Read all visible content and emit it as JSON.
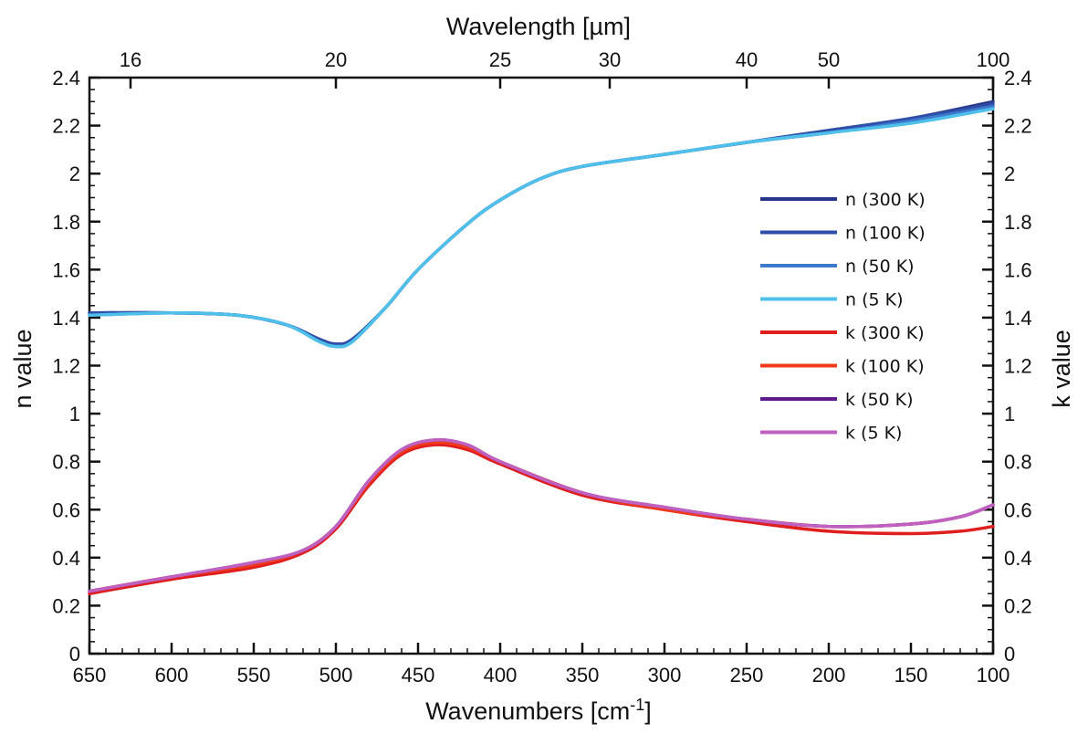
{
  "chart_data": {
    "type": "line",
    "xlabel": "Wavenumbers [cm",
    "xlabel_sup": "-1",
    "xlabel_close": "]",
    "x2label": "Wavelength [µm]",
    "ylabel": "n value",
    "y2label": "k value",
    "xlim": [
      650,
      100
    ],
    "ylim": [
      0,
      2.4
    ],
    "xticks": [
      650,
      600,
      550,
      500,
      450,
      400,
      350,
      300,
      250,
      200,
      150,
      100
    ],
    "xtick_labels": [
      "650",
      "600",
      "550",
      "500",
      "450",
      "400",
      "350",
      "300",
      "250",
      "200",
      "150",
      "100"
    ],
    "yticks": [
      0,
      0.2,
      0.4,
      0.6,
      0.8,
      1,
      1.2,
      1.4,
      1.6,
      1.8,
      2,
      2.2,
      2.4
    ],
    "ytick_labels": [
      "0",
      "0.2",
      "0.4",
      "0.6",
      "0.8",
      "1",
      "1.2",
      "1.4",
      "1.6",
      "1.8",
      "2",
      "2.2",
      "2.4"
    ],
    "top_ticks": [
      {
        "label": "16",
        "wavelength": 16
      },
      {
        "label": "20",
        "wavelength": 20
      },
      {
        "label": "25",
        "wavelength": 25
      },
      {
        "label": "30",
        "wavelength": 30
      },
      {
        "label": "40",
        "wavelength": 40
      },
      {
        "label": "50",
        "wavelength": 50
      },
      {
        "label": "100",
        "wavelength": 100
      }
    ],
    "grid": false,
    "legend_position": "right",
    "series": [
      {
        "name": "n (300 K)",
        "color": "#28368c",
        "x": [
          650,
          600,
          560,
          530,
          510,
          500,
          490,
          470,
          450,
          420,
          400,
          375,
          350,
          300,
          250,
          200,
          150,
          100
        ],
        "y": [
          1.42,
          1.42,
          1.41,
          1.37,
          1.31,
          1.29,
          1.31,
          1.44,
          1.6,
          1.79,
          1.89,
          1.98,
          2.03,
          2.08,
          2.13,
          2.18,
          2.23,
          2.3
        ]
      },
      {
        "name": "n (100 K)",
        "color": "#2e4ea8",
        "x": [
          650,
          600,
          560,
          530,
          510,
          500,
          490,
          470,
          450,
          420,
          400,
          375,
          350,
          300,
          250,
          200,
          150,
          100
        ],
        "y": [
          1.42,
          1.42,
          1.41,
          1.37,
          1.31,
          1.29,
          1.31,
          1.44,
          1.6,
          1.79,
          1.89,
          1.98,
          2.03,
          2.08,
          2.13,
          2.18,
          2.23,
          2.29
        ]
      },
      {
        "name": "n (50 K)",
        "color": "#3c78cc",
        "x": [
          650,
          600,
          560,
          530,
          510,
          500,
          490,
          470,
          450,
          420,
          400,
          375,
          350,
          300,
          250,
          200,
          150,
          100
        ],
        "y": [
          1.41,
          1.42,
          1.41,
          1.37,
          1.3,
          1.28,
          1.3,
          1.44,
          1.6,
          1.79,
          1.89,
          1.98,
          2.03,
          2.08,
          2.13,
          2.17,
          2.22,
          2.28
        ]
      },
      {
        "name": "n (5 K)",
        "color": "#4fc0ea",
        "x": [
          650,
          600,
          560,
          530,
          510,
          500,
          490,
          470,
          450,
          420,
          400,
          375,
          350,
          300,
          250,
          200,
          150,
          100
        ],
        "y": [
          1.41,
          1.42,
          1.41,
          1.37,
          1.3,
          1.28,
          1.3,
          1.44,
          1.6,
          1.79,
          1.89,
          1.98,
          2.03,
          2.08,
          2.13,
          2.17,
          2.21,
          2.27
        ]
      },
      {
        "name": "k (300 K)",
        "color": "#e01e1e",
        "x": [
          650,
          600,
          550,
          520,
          500,
          480,
          460,
          440,
          420,
          400,
          350,
          300,
          250,
          200,
          150,
          120,
          100
        ],
        "y": [
          0.25,
          0.31,
          0.36,
          0.42,
          0.52,
          0.7,
          0.83,
          0.87,
          0.85,
          0.79,
          0.66,
          0.6,
          0.55,
          0.51,
          0.5,
          0.51,
          0.53
        ]
      },
      {
        "name": "k (100 K)",
        "color": "#f03a1a",
        "x": [
          650,
          600,
          550,
          520,
          500,
          480,
          460,
          440,
          420,
          400,
          350,
          300,
          250,
          200,
          150,
          120,
          100
        ],
        "y": [
          0.26,
          0.32,
          0.37,
          0.43,
          0.53,
          0.71,
          0.84,
          0.88,
          0.86,
          0.8,
          0.67,
          0.6,
          0.56,
          0.53,
          0.54,
          0.57,
          0.62
        ]
      },
      {
        "name": "k (50 K)",
        "color": "#5c1a8c",
        "x": [
          650,
          600,
          550,
          520,
          500,
          480,
          460,
          440,
          420,
          400,
          350,
          300,
          250,
          200,
          150,
          120,
          100
        ],
        "y": [
          0.26,
          0.32,
          0.38,
          0.43,
          0.53,
          0.72,
          0.85,
          0.89,
          0.87,
          0.8,
          0.67,
          0.61,
          0.56,
          0.53,
          0.54,
          0.57,
          0.62
        ]
      },
      {
        "name": "k (5 K)",
        "color": "#c060c0",
        "x": [
          650,
          600,
          550,
          520,
          500,
          480,
          460,
          440,
          420,
          400,
          350,
          300,
          250,
          200,
          150,
          120,
          100
        ],
        "y": [
          0.26,
          0.32,
          0.38,
          0.43,
          0.53,
          0.72,
          0.85,
          0.89,
          0.87,
          0.8,
          0.67,
          0.61,
          0.56,
          0.53,
          0.54,
          0.57,
          0.62
        ]
      }
    ]
  }
}
